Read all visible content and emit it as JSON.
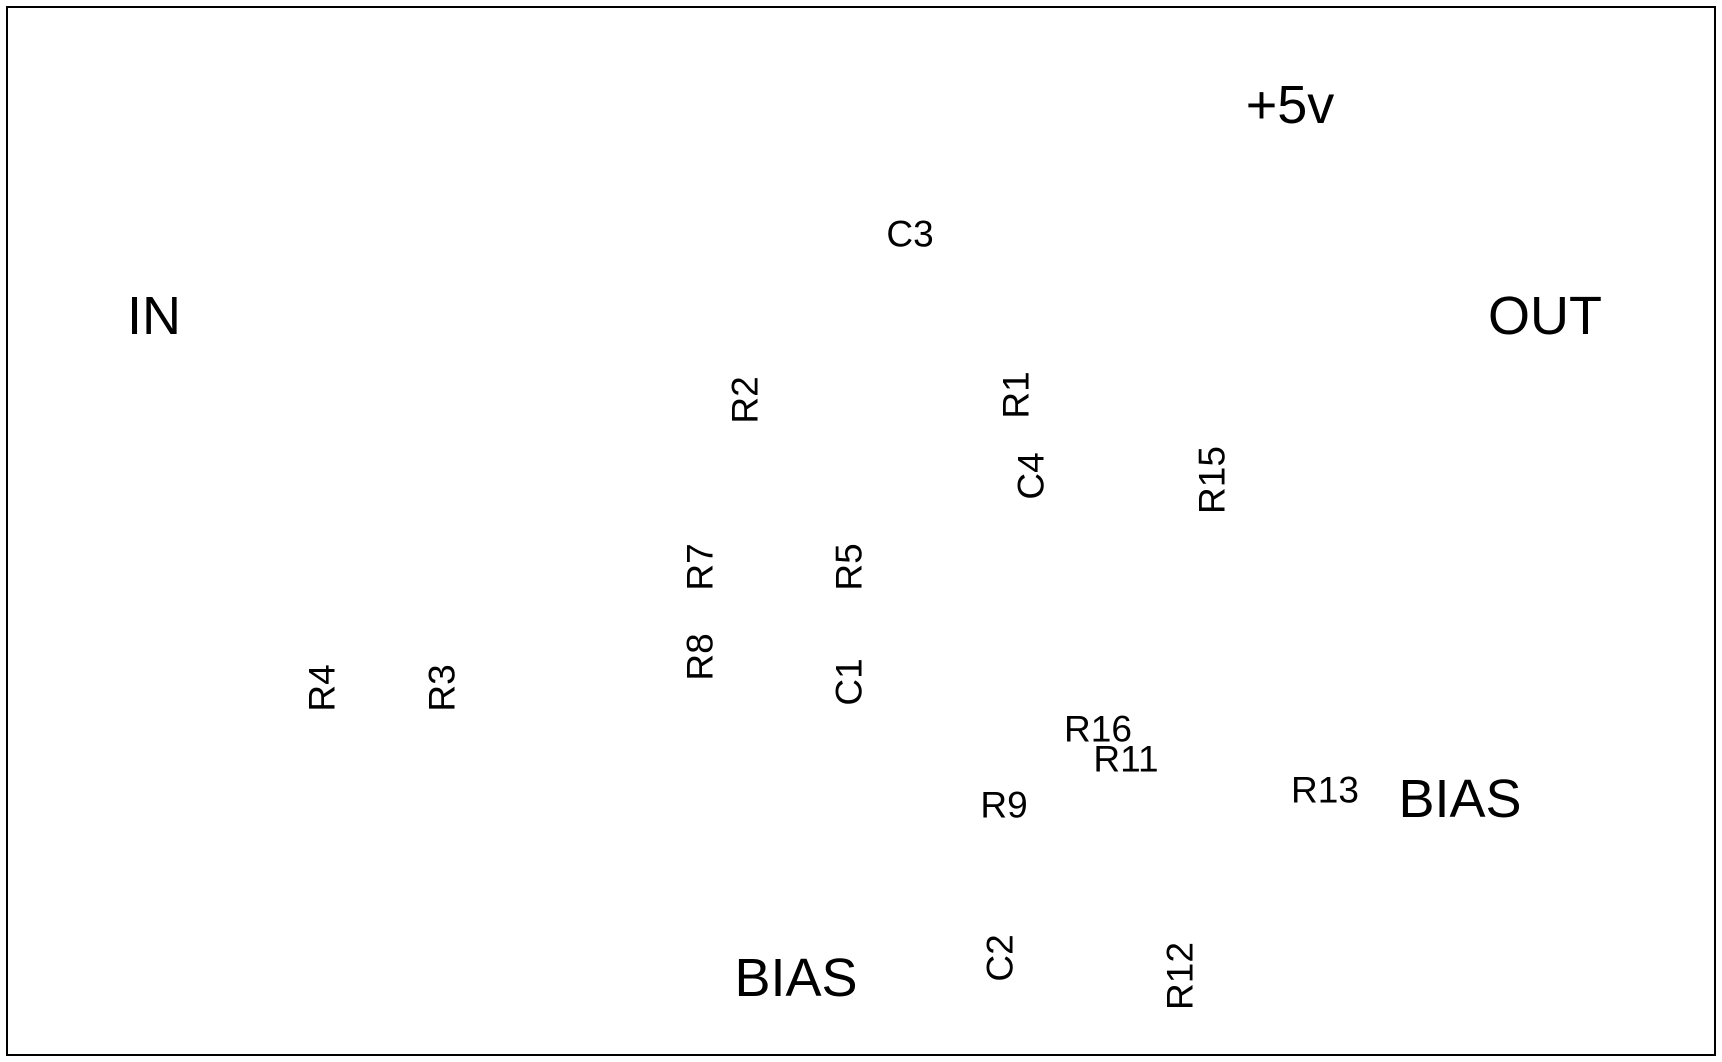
{
  "net_labels": {
    "supply": "+5v",
    "input": "IN",
    "output": "OUT",
    "bias_right": "BIAS",
    "bias_bottom": "BIAS"
  },
  "component_labels": {
    "C1": "C1",
    "C2": "C2",
    "C3": "C3",
    "C4": "C4",
    "R1": "R1",
    "R2": "R2",
    "R3": "R3",
    "R4": "R4",
    "R5": "R5",
    "R7": "R7",
    "R8": "R8",
    "R9": "R9",
    "R11": "R11",
    "R12": "R12",
    "R13": "R13",
    "R15": "R15",
    "R16": "R16"
  }
}
